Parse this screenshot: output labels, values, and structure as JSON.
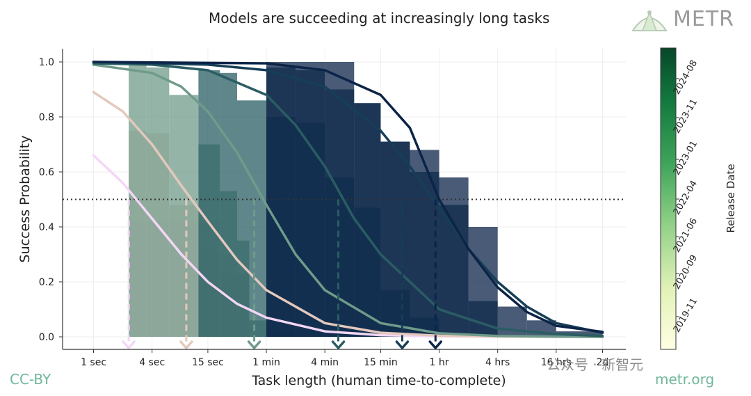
{
  "chart_data": {
    "type": "area",
    "title": "Models are succeeding at increasingly long tasks",
    "xlabel": "Task length (human time-to-complete)",
    "ylabel": "Success Probability",
    "ylim": [
      0,
      1.05
    ],
    "x_scale": "log",
    "x_ticks": [
      {
        "label": "1 sec",
        "seconds": 1
      },
      {
        "label": "4 sec",
        "seconds": 4
      },
      {
        "label": "15 sec",
        "seconds": 15
      },
      {
        "label": "1 min",
        "seconds": 60
      },
      {
        "label": "4 min",
        "seconds": 240
      },
      {
        "label": "15 min",
        "seconds": 900
      },
      {
        "label": "1 hr",
        "seconds": 3600
      },
      {
        "label": "4 hrs",
        "seconds": 14400
      },
      {
        "label": "16 hrs",
        "seconds": 57600
      },
      {
        "label": "2d",
        "seconds": 172800
      }
    ],
    "y_ticks": [
      "0.0",
      "0.2",
      "0.4",
      "0.6",
      "0.8",
      "1.0"
    ],
    "threshold": 0.5,
    "grid": true,
    "colorbar": {
      "label": "Release Date",
      "ticks": [
        "2019-11",
        "2020-09",
        "2021-06",
        "2022-04",
        "2023-01",
        "2023-11",
        "2024-08"
      ]
    },
    "series": [
      {
        "color": "#f3d7f5",
        "curve": [
          [
            1,
            0.66
          ],
          [
            2,
            0.56
          ],
          [
            4,
            0.43
          ],
          [
            8,
            0.3
          ],
          [
            15,
            0.2
          ],
          [
            30,
            0.12
          ],
          [
            60,
            0.07
          ],
          [
            240,
            0.02
          ],
          [
            900,
            0.006
          ],
          [
            3600,
            0.002
          ],
          [
            14400,
            0.001
          ],
          [
            57600,
            0.0
          ],
          [
            172800,
            0.0
          ]
        ],
        "horizon_seconds": 2.3,
        "bars": [
          [
            2.3,
            3.5,
            0.42
          ],
          [
            3.5,
            6,
            0.42
          ],
          [
            6,
            12,
            0.42
          ],
          [
            12,
            20,
            0.3
          ],
          [
            20,
            30,
            0.23
          ],
          [
            30,
            40,
            0.22
          ]
        ]
      },
      {
        "color": "#e3c8bd",
        "curve": [
          [
            1,
            0.89
          ],
          [
            2,
            0.82
          ],
          [
            4,
            0.7
          ],
          [
            8,
            0.55
          ],
          [
            15,
            0.42
          ],
          [
            30,
            0.28
          ],
          [
            60,
            0.17
          ],
          [
            240,
            0.05
          ],
          [
            900,
            0.015
          ],
          [
            3600,
            0.004
          ],
          [
            14400,
            0.001
          ],
          [
            57600,
            0.0
          ],
          [
            172800,
            0.0
          ]
        ],
        "horizon_seconds": 9,
        "bars": [
          [
            2.3,
            3.5,
            0.75
          ],
          [
            3.5,
            6,
            0.74
          ],
          [
            6,
            12,
            0.48
          ],
          [
            12,
            20,
            0.42
          ],
          [
            20,
            30,
            0.3
          ],
          [
            30,
            40,
            0.23
          ]
        ]
      },
      {
        "color": "#6f9b8a",
        "curve": [
          [
            1,
            0.99
          ],
          [
            4,
            0.96
          ],
          [
            8,
            0.91
          ],
          [
            15,
            0.82
          ],
          [
            30,
            0.67
          ],
          [
            60,
            0.48
          ],
          [
            120,
            0.3
          ],
          [
            240,
            0.17
          ],
          [
            900,
            0.05
          ],
          [
            3600,
            0.013
          ],
          [
            14400,
            0.003
          ],
          [
            57600,
            0.001
          ],
          [
            172800,
            0.0
          ]
        ],
        "horizon_seconds": 45,
        "bars": [
          [
            2.3,
            3.5,
            0.99
          ],
          [
            3.5,
            6,
            0.98
          ],
          [
            6,
            12,
            0.88
          ],
          [
            12,
            20,
            0.7
          ],
          [
            20,
            30,
            0.53
          ],
          [
            30,
            40,
            0.35
          ],
          [
            40,
            60,
            0.06
          ],
          [
            60,
            120,
            0.02
          ]
        ]
      },
      {
        "color": "#2a5d63",
        "curve": [
          [
            1,
            0.995
          ],
          [
            4,
            0.99
          ],
          [
            15,
            0.97
          ],
          [
            60,
            0.88
          ],
          [
            120,
            0.77
          ],
          [
            240,
            0.62
          ],
          [
            480,
            0.43
          ],
          [
            900,
            0.3
          ],
          [
            3600,
            0.1
          ],
          [
            14400,
            0.03
          ],
          [
            57600,
            0.01
          ],
          [
            172800,
            0.003
          ]
        ],
        "horizon_seconds": 330,
        "bars": [
          [
            12,
            20,
            0.97
          ],
          [
            20,
            30,
            0.96
          ],
          [
            30,
            60,
            0.86
          ],
          [
            60,
            120,
            0.8
          ],
          [
            120,
            240,
            0.78
          ],
          [
            240,
            480,
            0.58
          ],
          [
            480,
            900,
            0.47
          ],
          [
            900,
            1800,
            0.17
          ],
          [
            1800,
            3600,
            0.07
          ],
          [
            3600,
            7200,
            0.01
          ],
          [
            7200,
            14400,
            0.0
          ]
        ]
      },
      {
        "color": "#163e57",
        "curve": [
          [
            1,
            1.0
          ],
          [
            15,
            0.99
          ],
          [
            60,
            0.97
          ],
          [
            240,
            0.91
          ],
          [
            900,
            0.75
          ],
          [
            1800,
            0.62
          ],
          [
            3600,
            0.47
          ],
          [
            7200,
            0.32
          ],
          [
            14400,
            0.2
          ],
          [
            28800,
            0.11
          ],
          [
            57600,
            0.05
          ],
          [
            172800,
            0.015
          ]
        ],
        "horizon_seconds": 1500,
        "bars": [
          [
            60,
            120,
            0.98
          ],
          [
            120,
            240,
            0.97
          ],
          [
            240,
            480,
            0.9
          ],
          [
            480,
            900,
            0.85
          ],
          [
            900,
            1800,
            0.71
          ],
          [
            1800,
            3600,
            0.6
          ],
          [
            3600,
            7200,
            0.48
          ],
          [
            7200,
            14400,
            0.13
          ]
        ]
      },
      {
        "color": "#0c2448",
        "curve": [
          [
            1,
            1.0
          ],
          [
            60,
            0.995
          ],
          [
            240,
            0.97
          ],
          [
            900,
            0.88
          ],
          [
            1800,
            0.76
          ],
          [
            3600,
            0.5
          ],
          [
            7200,
            0.32
          ],
          [
            14400,
            0.18
          ],
          [
            28800,
            0.09
          ],
          [
            57600,
            0.04
          ],
          [
            172800,
            0.018
          ]
        ],
        "horizon_seconds": 3300,
        "bars": [
          [
            60,
            120,
            1.0
          ],
          [
            120,
            240,
            1.0
          ],
          [
            240,
            480,
            1.0
          ],
          [
            480,
            900,
            0.85
          ],
          [
            900,
            1800,
            0.71
          ],
          [
            1800,
            3600,
            0.68
          ],
          [
            3600,
            7200,
            0.58
          ],
          [
            7200,
            14400,
            0.4
          ],
          [
            14400,
            28800,
            0.11
          ],
          [
            28800,
            57600,
            0.06
          ],
          [
            57600,
            172800,
            0.02
          ]
        ]
      }
    ]
  },
  "header": {
    "brand": "METR"
  },
  "footer": {
    "left": "CC-BY",
    "right": "metr.org"
  },
  "watermark": {
    "text": "公众号 · 新智元"
  }
}
